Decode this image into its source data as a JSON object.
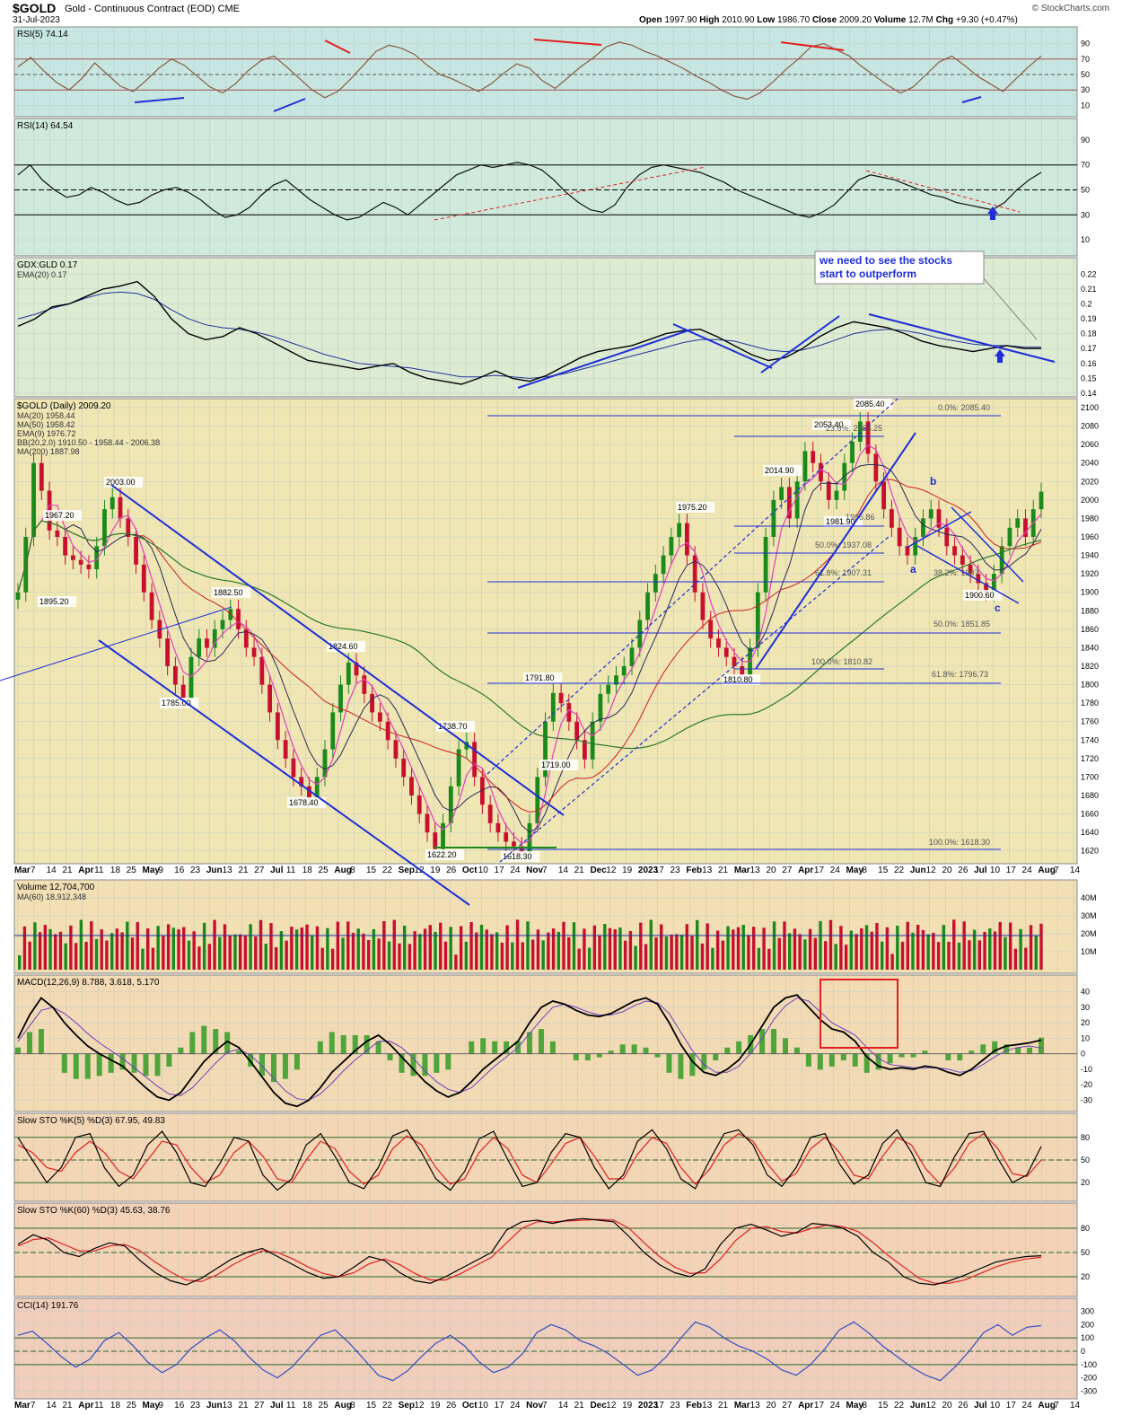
{
  "header": {
    "symbol": "$GOLD",
    "description": "Gold - Continuous Contract (EOD) CME",
    "date": "31-Jul-2023",
    "open_label": "Open",
    "open": "1997.90",
    "high_label": "High",
    "high": "2010.90",
    "low_label": "Low",
    "low": "1986.70",
    "close_label": "Close",
    "close": "2009.20",
    "volume_label": "Volume",
    "volume": "12.7M",
    "chg_label": "Chg",
    "chg": "+9.30 (+0.47%)",
    "brand": "© StockCharts.com"
  },
  "x_axis_labels": [
    "Mar",
    "7",
    "14",
    "21",
    "Apr",
    "11",
    "18",
    "25",
    "May",
    "9",
    "16",
    "23",
    "Jun",
    "13",
    "21",
    "27",
    "Jul",
    "11",
    "18",
    "25",
    "Aug",
    "8",
    "15",
    "22",
    "Sep",
    "12",
    "19",
    "26",
    "Oct",
    "10",
    "17",
    "24",
    "Nov",
    "7",
    "14",
    "21",
    "Dec",
    "12",
    "19",
    "2023",
    "17",
    "23",
    "Feb",
    "13",
    "21",
    "Mar",
    "13",
    "20",
    "27",
    "Apr",
    "17",
    "24",
    "May",
    "8",
    "15",
    "22",
    "Jun",
    "12",
    "20",
    "26",
    "Jul",
    "10",
    "17",
    "24",
    "Aug",
    "7",
    "14"
  ],
  "colors": {
    "price_bg": "#f1e8b8",
    "osc_bg": "#d3ece4",
    "up": "#1a8a1a",
    "down": "#c8102e",
    "trend": "#1f2ed6",
    "ma20": "#2a2a5a",
    "ma50": "#cc2020",
    "ema9": "#e040c0",
    "ma200": "#2a7a2a"
  },
  "chart_data": [
    {
      "type": "line",
      "panel": "rsi5",
      "title": "RSI(5) 74.14",
      "y_ticks": [
        10,
        30,
        50,
        70,
        90
      ],
      "ylim": [
        0,
        100
      ],
      "values": [
        60,
        72,
        55,
        40,
        30,
        45,
        65,
        50,
        35,
        28,
        42,
        58,
        70,
        62,
        48,
        34,
        26,
        38,
        55,
        68,
        74,
        60,
        45,
        30,
        20,
        28,
        44,
        62,
        80,
        88,
        84,
        76,
        62,
        50,
        44,
        36,
        28,
        38,
        52,
        64,
        58,
        42,
        32,
        46,
        60,
        72,
        86,
        92,
        88,
        80,
        74,
        66,
        58,
        48,
        40,
        30,
        22,
        18,
        26,
        40,
        56,
        70,
        86,
        90,
        82,
        74,
        60,
        48,
        36,
        26,
        34,
        50,
        66,
        74,
        62,
        48,
        38,
        28,
        44,
        60,
        74
      ],
      "annotations": [
        "hline-30",
        "hline-50",
        "hline-70"
      ]
    },
    {
      "type": "line",
      "panel": "rsi14",
      "title": "RSI(14) 64.54",
      "y_ticks": [
        10,
        30,
        50,
        70,
        90
      ],
      "ylim": [
        0,
        100
      ],
      "values": [
        62,
        70,
        58,
        50,
        44,
        46,
        52,
        48,
        42,
        38,
        40,
        46,
        50,
        52,
        48,
        42,
        34,
        28,
        30,
        36,
        46,
        54,
        58,
        50,
        42,
        36,
        30,
        26,
        28,
        34,
        40,
        36,
        30,
        38,
        46,
        54,
        62,
        66,
        70,
        68,
        70,
        72,
        70,
        66,
        58,
        48,
        40,
        34,
        32,
        38,
        52,
        62,
        68,
        70,
        68,
        66,
        64,
        60,
        56,
        50,
        46,
        42,
        38,
        34,
        30,
        28,
        32,
        38,
        48,
        58,
        62,
        60,
        58,
        54,
        50,
        46,
        44,
        40,
        38,
        36,
        34,
        40,
        50,
        58,
        64
      ]
    },
    {
      "type": "line",
      "panel": "gdx_gld",
      "title": "GDX:GLD 0.17",
      "legend": [
        "EMA(20) 0.17"
      ],
      "y_ticks": [
        0.14,
        0.15,
        0.16,
        0.17,
        0.18,
        0.19,
        0.2,
        0.21,
        0.22
      ],
      "ylim": [
        0.14,
        0.225
      ],
      "values": [
        0.185,
        0.19,
        0.198,
        0.2,
        0.205,
        0.21,
        0.212,
        0.215,
        0.205,
        0.19,
        0.18,
        0.176,
        0.178,
        0.184,
        0.18,
        0.174,
        0.168,
        0.162,
        0.16,
        0.158,
        0.156,
        0.158,
        0.16,
        0.154,
        0.15,
        0.148,
        0.146,
        0.15,
        0.155,
        0.15,
        0.148,
        0.152,
        0.158,
        0.164,
        0.168,
        0.17,
        0.172,
        0.176,
        0.18,
        0.182,
        0.183,
        0.178,
        0.172,
        0.166,
        0.162,
        0.164,
        0.17,
        0.178,
        0.184,
        0.188,
        0.186,
        0.184,
        0.18,
        0.175,
        0.172,
        0.17,
        0.168,
        0.17,
        0.172,
        0.17,
        0.17
      ],
      "ema": [
        0.19,
        0.193,
        0.197,
        0.2,
        0.204,
        0.207,
        0.208,
        0.207,
        0.203,
        0.196,
        0.19,
        0.186,
        0.184,
        0.183,
        0.181,
        0.178,
        0.174,
        0.17,
        0.166,
        0.163,
        0.16,
        0.159,
        0.158,
        0.157,
        0.155,
        0.153,
        0.151,
        0.151,
        0.152,
        0.151,
        0.15,
        0.151,
        0.153,
        0.156,
        0.159,
        0.162,
        0.165,
        0.168,
        0.171,
        0.174,
        0.176,
        0.176,
        0.175,
        0.172,
        0.169,
        0.168,
        0.169,
        0.172,
        0.176,
        0.18,
        0.182,
        0.183,
        0.182,
        0.18,
        0.177,
        0.175,
        0.173,
        0.172,
        0.172,
        0.171,
        0.171
      ],
      "annotation": "we need to see the stocks start to outperform"
    },
    {
      "type": "candlestick",
      "panel": "price",
      "title": "$GOLD (Daily) 2009.20",
      "legend": [
        "MA(20) 1958.44",
        "MA(50) 1958.42",
        "EMA(9) 1976.72",
        "BB(20,2.0) 1910.50 - 1958.44 - 2006.38",
        "MA(200) 1887.98"
      ],
      "y_ticks": [
        1620,
        1640,
        1660,
        1680,
        1700,
        1720,
        1740,
        1760,
        1780,
        1800,
        1820,
        1840,
        1860,
        1880,
        1900,
        1920,
        1940,
        1960,
        1980,
        2000,
        2020,
        2040,
        2060,
        2080,
        2100
      ],
      "ylim": [
        1610,
        2100
      ],
      "close": [
        1900,
        1960,
        2040,
        2010,
        1967,
        1960,
        1940,
        1935,
        1930,
        1925,
        1950,
        1990,
        2003,
        1980,
        1960,
        1930,
        1900,
        1870,
        1850,
        1820,
        1800,
        1785,
        1830,
        1850,
        1840,
        1860,
        1870,
        1882,
        1860,
        1840,
        1830,
        1800,
        1770,
        1740,
        1720,
        1700,
        1690,
        1678,
        1700,
        1730,
        1770,
        1800,
        1824,
        1810,
        1790,
        1770,
        1760,
        1740,
        1720,
        1700,
        1680,
        1660,
        1640,
        1622,
        1650,
        1690,
        1730,
        1738,
        1700,
        1670,
        1650,
        1640,
        1630,
        1625,
        1618,
        1650,
        1700,
        1760,
        1791,
        1780,
        1760,
        1740,
        1719,
        1760,
        1790,
        1800,
        1810,
        1820,
        1840,
        1870,
        1900,
        1920,
        1940,
        1960,
        1975,
        1940,
        1900,
        1870,
        1850,
        1840,
        1830,
        1820,
        1810,
        1840,
        1900,
        1960,
        2000,
        2014,
        1980,
        2020,
        2053,
        2040,
        2020,
        2000,
        2010,
        2040,
        2063,
        2085,
        2050,
        2020,
        1990,
        1970,
        1950,
        1940,
        1960,
        1980,
        1990,
        1970,
        1950,
        1940,
        1930,
        1920,
        1910,
        1900,
        1920,
        1950,
        1970,
        1980,
        1960,
        1990,
        2009
      ],
      "price_labels": [
        "2003.00",
        "1967.20",
        "1895.20",
        "1882.50",
        "1785.00",
        "1824.60",
        "1678.40",
        "1738.70",
        "1622.20",
        "1618.30",
        "1791.80",
        "1719.00",
        "1975.20",
        "1810.80",
        "2014.90",
        "2053.40",
        "2085.40",
        "1981.90",
        "1900.60"
      ],
      "fib_labels": [
        "0.0%: 2085.40",
        "100.0%: 1618.30",
        "61.8%: 1796.73",
        "50.0%: 1851.85",
        "38.2%: 1907",
        "61.8%: 1907.31",
        "50.0%: 1937.08",
        "100.0%: 1810.82",
        "23.6%: 2063.25",
        "1966.86"
      ],
      "wave_labels": [
        "a",
        "b",
        "c"
      ]
    },
    {
      "type": "bar",
      "panel": "volume",
      "title": "Volume 12,704,700",
      "legend": [
        "MA(60) 18,912,348"
      ],
      "y_ticks": [
        "10M",
        "20M",
        "30M",
        "40M"
      ],
      "ylim": [
        0,
        45
      ]
    },
    {
      "type": "line",
      "panel": "macd",
      "title": "MACD(12,26,9) 8.788, 3.618, 5.170",
      "y_ticks": [
        -30,
        -20,
        -10,
        0,
        10,
        20,
        30,
        40
      ],
      "ylim": [
        -35,
        45
      ],
      "values": [
        10,
        25,
        36,
        30,
        20,
        12,
        5,
        0,
        -4,
        -8,
        -15,
        -22,
        -28,
        -30,
        -25,
        -15,
        -5,
        2,
        8,
        4,
        -5,
        -15,
        -25,
        -32,
        -34,
        -30,
        -22,
        -12,
        -5,
        2,
        8,
        12,
        6,
        -2,
        -10,
        -18,
        -24,
        -28,
        -25,
        -18,
        -10,
        -4,
        2,
        8,
        20,
        30,
        34,
        32,
        28,
        25,
        24,
        26,
        30,
        34,
        36,
        32,
        20,
        6,
        -5,
        -12,
        -14,
        -10,
        -4,
        6,
        18,
        30,
        36,
        38,
        30,
        22,
        16,
        14,
        8,
        -2,
        -8,
        -10,
        -9,
        -10,
        -8,
        -9,
        -12,
        -14,
        -10,
        -4,
        2,
        5,
        6,
        7,
        8.8
      ],
      "signal": [
        8,
        18,
        28,
        30,
        26,
        20,
        13,
        7,
        2,
        -3,
        -9,
        -15,
        -21,
        -26,
        -27,
        -22,
        -14,
        -6,
        1,
        3,
        -1,
        -8,
        -16,
        -24,
        -29,
        -30,
        -26,
        -19,
        -11,
        -4,
        2,
        8,
        8,
        4,
        -3,
        -11,
        -18,
        -23,
        -25,
        -22,
        -15,
        -8,
        -2,
        4,
        13,
        22,
        30,
        32,
        30,
        27,
        25,
        25,
        27,
        31,
        34,
        33,
        26,
        14,
        2,
        -7,
        -12,
        -12,
        -8,
        0,
        10,
        22,
        31,
        36,
        34,
        27,
        20,
        16,
        12,
        4,
        -3,
        -7,
        -8,
        -9,
        -9,
        -9,
        -10,
        -12,
        -11,
        -7,
        -2,
        2,
        4,
        5,
        3.6
      ]
    },
    {
      "type": "line",
      "panel": "sto5",
      "title": "Slow STO %K(5) %D(3) 67.95, 49.83",
      "y_ticks": [
        20,
        50,
        80
      ],
      "ylim": [
        0,
        100
      ],
      "values": [
        80,
        50,
        20,
        40,
        80,
        85,
        40,
        15,
        30,
        70,
        88,
        60,
        20,
        15,
        45,
        80,
        75,
        30,
        10,
        25,
        70,
        85,
        55,
        20,
        12,
        40,
        82,
        90,
        60,
        25,
        10,
        35,
        78,
        88,
        50,
        15,
        20,
        60,
        85,
        80,
        40,
        12,
        30,
        75,
        90,
        65,
        25,
        12,
        50,
        85,
        90,
        70,
        30,
        15,
        40,
        80,
        85,
        45,
        18,
        30,
        72,
        90,
        60,
        20,
        15,
        55,
        85,
        88,
        52,
        20,
        30,
        68
      ],
      "d": [
        70,
        60,
        40,
        35,
        60,
        75,
        60,
        35,
        25,
        50,
        75,
        70,
        40,
        20,
        30,
        60,
        75,
        55,
        25,
        20,
        50,
        75,
        65,
        35,
        18,
        30,
        65,
        82,
        70,
        40,
        18,
        25,
        60,
        80,
        65,
        30,
        20,
        45,
        72,
        80,
        55,
        25,
        25,
        58,
        80,
        72,
        40,
        18,
        38,
        70,
        85,
        75,
        45,
        22,
        32,
        65,
        80,
        60,
        30,
        25,
        55,
        80,
        70,
        38,
        18,
        40,
        72,
        85,
        65,
        32,
        28,
        50
      ]
    },
    {
      "type": "line",
      "panel": "sto60",
      "title": "Slow STO %K(60) %D(3) 45.63, 38.76",
      "y_ticks": [
        20,
        50,
        80
      ],
      "ylim": [
        0,
        100
      ],
      "values": [
        60,
        72,
        65,
        50,
        45,
        55,
        62,
        58,
        40,
        25,
        15,
        10,
        18,
        30,
        42,
        50,
        55,
        45,
        35,
        25,
        18,
        20,
        32,
        45,
        40,
        25,
        15,
        12,
        20,
        30,
        40,
        50,
        78,
        88,
        90,
        86,
        90,
        92,
        90,
        88,
        70,
        50,
        35,
        25,
        20,
        30,
        60,
        80,
        85,
        78,
        70,
        75,
        86,
        84,
        80,
        70,
        50,
        38,
        20,
        12,
        10,
        15,
        22,
        30,
        38,
        42,
        45,
        46
      ],
      "d": [
        58,
        66,
        68,
        60,
        52,
        52,
        58,
        60,
        52,
        38,
        26,
        16,
        14,
        22,
        34,
        44,
        52,
        50,
        42,
        32,
        24,
        20,
        25,
        36,
        42,
        35,
        24,
        16,
        16,
        24,
        34,
        44,
        62,
        80,
        88,
        88,
        89,
        90,
        91,
        90,
        80,
        62,
        45,
        32,
        24,
        25,
        42,
        65,
        80,
        82,
        76,
        74,
        80,
        84,
        82,
        76,
        62,
        46,
        32,
        18,
        12,
        12,
        16,
        24,
        32,
        38,
        42,
        44
      ]
    },
    {
      "type": "line",
      "panel": "cci",
      "title": "CCI(14) 191.76",
      "y_ticks": [
        -300,
        -200,
        -100,
        0,
        100,
        200,
        300
      ],
      "ylim": [
        -330,
        330
      ],
      "values": [
        120,
        150,
        60,
        -40,
        -120,
        -60,
        80,
        140,
        40,
        -80,
        -160,
        -100,
        20,
        100,
        160,
        80,
        -40,
        -140,
        -200,
        -120,
        0,
        120,
        160,
        60,
        -60,
        -180,
        -220,
        -150,
        -40,
        60,
        120,
        40,
        -80,
        -160,
        -120,
        -20,
        140,
        200,
        160,
        80,
        40,
        -20,
        -100,
        -180,
        -140,
        -40,
        100,
        220,
        180,
        100,
        40,
        0,
        -60,
        -140,
        -180,
        -100,
        20,
        160,
        220,
        140,
        40,
        -40,
        -120,
        -180,
        -220,
        -120,
        0,
        140,
        200,
        120,
        180,
        191.76
      ]
    }
  ]
}
